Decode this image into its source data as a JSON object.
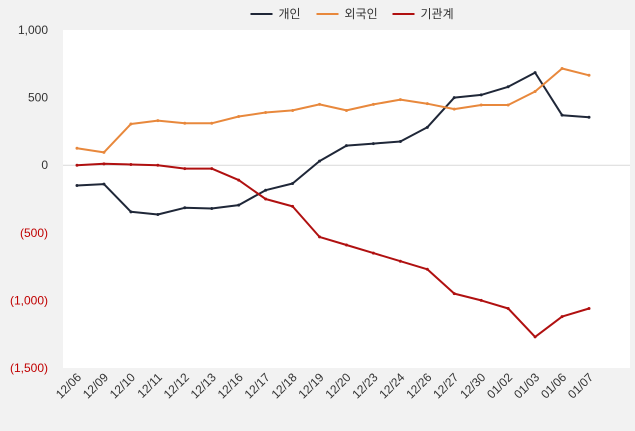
{
  "chart_data": {
    "type": "line",
    "title": "",
    "xlabel": "",
    "ylabel": "",
    "ylim": [
      -1500,
      1000
    ],
    "yticks": [
      1000,
      500,
      0,
      -500,
      -1000,
      -1500
    ],
    "ytick_labels": [
      "1,000",
      "500",
      "0",
      "(500)",
      "(1,000)",
      "(1,500)"
    ],
    "negative_tick_color": "#c00000",
    "legend_position": "top-center",
    "grid": false,
    "zero_line": true,
    "categories": [
      "12/06",
      "12/09",
      "12/10",
      "12/11",
      "12/12",
      "12/13",
      "12/16",
      "12/17",
      "12/18",
      "12/19",
      "12/20",
      "12/23",
      "12/24",
      "12/26",
      "12/27",
      "12/30",
      "01/02",
      "01/03",
      "01/06",
      "01/07"
    ],
    "series": [
      {
        "name": "개인",
        "color": "#1f2738",
        "values": [
          -150,
          -140,
          -345,
          -365,
          -315,
          -320,
          -295,
          -185,
          -135,
          30,
          145,
          160,
          175,
          280,
          500,
          520,
          580,
          685,
          370,
          355
        ]
      },
      {
        "name": "외국인",
        "color": "#e8883c",
        "values": [
          125,
          95,
          305,
          330,
          310,
          310,
          360,
          390,
          405,
          450,
          405,
          450,
          485,
          455,
          415,
          445,
          445,
          545,
          715,
          665
        ]
      },
      {
        "name": "기관계",
        "color": "#b01010",
        "values": [
          0,
          10,
          5,
          0,
          -25,
          -25,
          -110,
          -250,
          -305,
          -530,
          -590,
          -650,
          -710,
          -770,
          -950,
          -1000,
          -1060,
          -1270,
          -1120,
          -1060
        ]
      }
    ]
  }
}
